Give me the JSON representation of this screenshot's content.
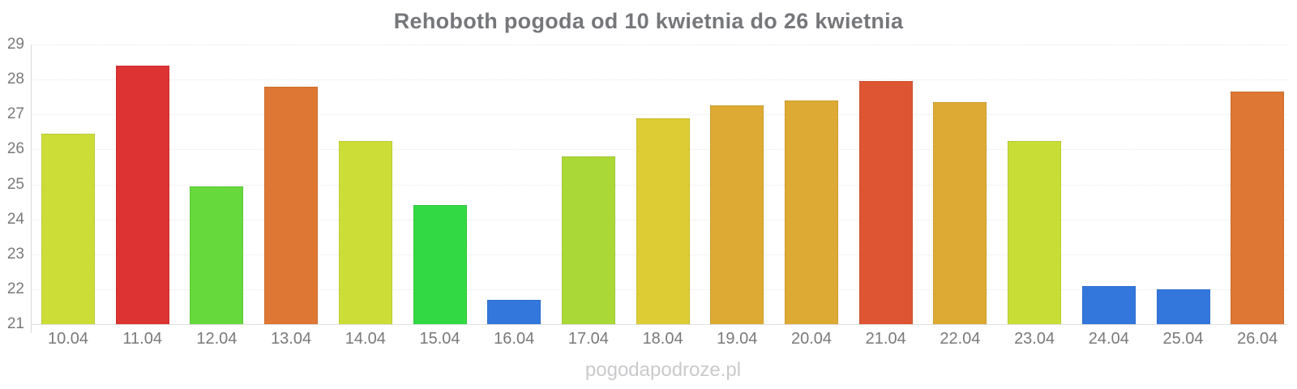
{
  "page": {
    "title": "Rehoboth pogoda od 10 kwietnia do 26 kwietnia",
    "watermark": "pogodapodroze.pl"
  },
  "chart_data": {
    "type": "bar",
    "title": "Rehoboth pogoda od 10 kwietnia do 26 kwietnia",
    "categories": [
      "10.04",
      "11.04",
      "12.04",
      "13.04",
      "14.04",
      "15.04",
      "16.04",
      "17.04",
      "18.04",
      "19.04",
      "20.04",
      "21.04",
      "22.04",
      "23.04",
      "24.04",
      "25.04",
      "26.04"
    ],
    "values": [
      26.45,
      28.4,
      24.95,
      27.8,
      26.25,
      24.4,
      21.7,
      25.8,
      26.9,
      27.25,
      27.4,
      27.95,
      27.35,
      26.25,
      22.1,
      22.0,
      27.65
    ],
    "bar_colors": [
      "#ccdd38",
      "#dd3333",
      "#66d93d",
      "#dd7733",
      "#ccdd38",
      "#33d944",
      "#3377dd",
      "#aad937",
      "#ddcc33",
      "#ddaa33",
      "#ddaa33",
      "#dd5533",
      "#ddaa33",
      "#c8dd36",
      "#3377dd",
      "#3377dd",
      "#dd7733"
    ],
    "xlabel": "",
    "ylabel": "",
    "ylim": [
      21,
      29
    ],
    "yticks": [
      21,
      22,
      23,
      24,
      25,
      26,
      27,
      28,
      29
    ],
    "grid": true,
    "legend": false,
    "text_color": "#78797b",
    "title_color": "#76777a",
    "grid_color": "#e9e9e9",
    "axis_line_color": "#d9d9d9",
    "watermark_color": "#c9cacc",
    "background_color": "#ffffff"
  }
}
